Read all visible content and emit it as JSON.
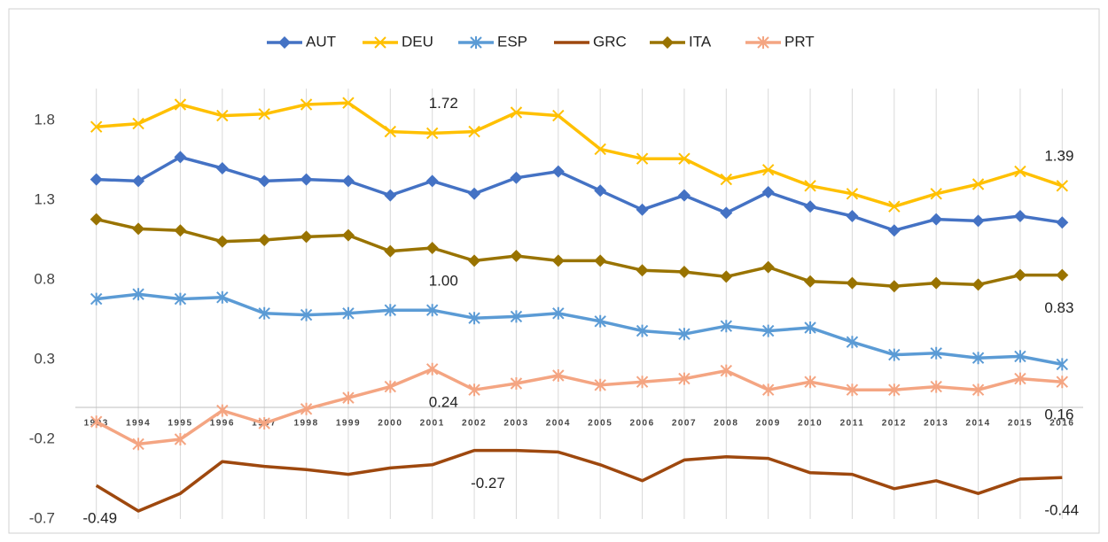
{
  "chart_data": {
    "type": "line",
    "categories": [
      "1993",
      "1994",
      "1995",
      "1996",
      "1997",
      "1998",
      "1999",
      "2000",
      "2001",
      "2002",
      "2003",
      "2004",
      "2005",
      "2006",
      "2007",
      "2008",
      "2009",
      "2010",
      "2011",
      "2012",
      "2013",
      "2014",
      "2015",
      "2016"
    ],
    "ylim": [
      -0.7,
      2.0
    ],
    "yticks": [
      -0.7,
      -0.2,
      0.3,
      0.8,
      1.3,
      1.8
    ],
    "grid": true,
    "legend": "top",
    "series": [
      {
        "name": "AUT",
        "color": "#4472c4",
        "marker": "diamond",
        "values": [
          1.43,
          1.42,
          1.57,
          1.5,
          1.42,
          1.43,
          1.42,
          1.33,
          1.42,
          1.34,
          1.44,
          1.48,
          1.36,
          1.24,
          1.33,
          1.22,
          1.35,
          1.26,
          1.2,
          1.11,
          1.18,
          1.17,
          1.2,
          1.16
        ]
      },
      {
        "name": "DEU",
        "color": "#ffc000",
        "marker": "x",
        "values": [
          1.76,
          1.78,
          1.9,
          1.83,
          1.84,
          1.9,
          1.91,
          1.73,
          1.72,
          1.73,
          1.85,
          1.83,
          1.62,
          1.56,
          1.56,
          1.43,
          1.49,
          1.39,
          1.34,
          1.26,
          1.34,
          1.4,
          1.48,
          1.39
        ],
        "value_labels": [
          null,
          null,
          null,
          null,
          null,
          null,
          null,
          null,
          "1.72",
          null,
          null,
          null,
          null,
          null,
          null,
          null,
          null,
          null,
          null,
          null,
          null,
          null,
          null,
          "1.39"
        ]
      },
      {
        "name": "ESP",
        "color": "#5b9bd5",
        "marker": "star",
        "values": [
          0.68,
          0.71,
          0.68,
          0.69,
          0.59,
          0.58,
          0.59,
          0.61,
          0.61,
          0.56,
          0.57,
          0.59,
          0.54,
          0.48,
          0.46,
          0.51,
          0.48,
          0.5,
          0.41,
          0.33,
          0.34,
          0.31,
          0.32,
          0.27
        ]
      },
      {
        "name": "GRC",
        "color": "#9e480e",
        "marker": "none",
        "values": [
          -0.49,
          -0.65,
          -0.54,
          -0.34,
          -0.37,
          -0.39,
          -0.42,
          -0.38,
          -0.36,
          -0.27,
          -0.27,
          -0.28,
          -0.36,
          -0.46,
          -0.33,
          -0.31,
          -0.32,
          -0.41,
          -0.42,
          -0.51,
          -0.46,
          -0.54,
          -0.45,
          -0.44
        ],
        "value_labels": [
          "-0.49",
          null,
          null,
          null,
          null,
          null,
          null,
          null,
          null,
          "-0.27",
          null,
          null,
          null,
          null,
          null,
          null,
          null,
          null,
          null,
          null,
          null,
          null,
          null,
          "-0.44"
        ]
      },
      {
        "name": "ITA",
        "color": "#997300",
        "marker": "diamond",
        "values": [
          1.18,
          1.12,
          1.11,
          1.04,
          1.05,
          1.07,
          1.08,
          0.98,
          1.0,
          0.92,
          0.95,
          0.92,
          0.92,
          0.86,
          0.85,
          0.82,
          0.88,
          0.79,
          0.78,
          0.76,
          0.78,
          0.77,
          0.83,
          0.83
        ],
        "value_labels": [
          null,
          null,
          null,
          null,
          null,
          null,
          null,
          null,
          "1.00",
          null,
          null,
          null,
          null,
          null,
          null,
          null,
          null,
          null,
          null,
          null,
          null,
          null,
          null,
          "0.83"
        ]
      },
      {
        "name": "PRT",
        "color": "#f4a582",
        "marker": "star",
        "values": [
          -0.09,
          -0.23,
          -0.2,
          -0.02,
          -0.1,
          -0.01,
          0.06,
          0.13,
          0.24,
          0.11,
          0.15,
          0.2,
          0.14,
          0.16,
          0.18,
          0.23,
          0.11,
          0.16,
          0.11,
          0.11,
          0.13,
          0.11,
          0.18,
          0.16
        ],
        "value_labels": [
          null,
          null,
          null,
          null,
          null,
          null,
          null,
          null,
          "0.24",
          null,
          null,
          null,
          null,
          null,
          null,
          null,
          null,
          null,
          null,
          null,
          null,
          null,
          null,
          "0.16"
        ]
      }
    ]
  }
}
